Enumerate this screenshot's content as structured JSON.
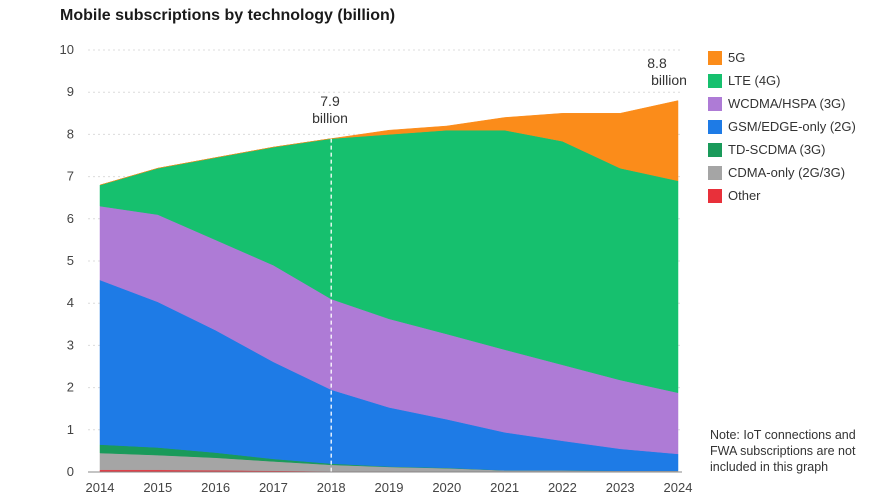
{
  "chart_data": {
    "type": "area",
    "title": "Mobile subscriptions by technology (billion)",
    "xlabel": "",
    "ylabel": "",
    "x": [
      2014,
      2015,
      2016,
      2017,
      2018,
      2019,
      2020,
      2021,
      2022,
      2023,
      2024
    ],
    "x_tick_labels": [
      "2014",
      "2015",
      "2016",
      "2017",
      "2018",
      "2019",
      "2020",
      "2021",
      "2022",
      "2023",
      "2024"
    ],
    "ylim": [
      0,
      10
    ],
    "y_ticks": [
      0,
      1,
      2,
      3,
      4,
      5,
      6,
      7,
      8,
      9,
      10
    ],
    "grid": true,
    "stacked": true,
    "series": [
      {
        "name": "Other",
        "color": "#e8303a",
        "values": [
          0.05,
          0.05,
          0.04,
          0.03,
          0.02,
          0.02,
          0.01,
          0.01,
          0.01,
          0.01,
          0.01
        ]
      },
      {
        "name": "CDMA-only (2G/3G)",
        "color": "#a5a5a5",
        "values": [
          0.4,
          0.35,
          0.3,
          0.22,
          0.15,
          0.1,
          0.08,
          0.03,
          0.03,
          0.02,
          0.02
        ]
      },
      {
        "name": "TD-SCDMA (3G)",
        "color": "#1a9a5a",
        "values": [
          0.2,
          0.18,
          0.12,
          0.06,
          0.03,
          0.01,
          0.01,
          0.0,
          0.0,
          0.0,
          0.0
        ]
      },
      {
        "name": "GSM/EDGE-only (2G)",
        "color": "#1e7be6",
        "values": [
          3.9,
          3.45,
          2.9,
          2.3,
          1.75,
          1.4,
          1.15,
          0.9,
          0.7,
          0.52,
          0.4
        ]
      },
      {
        "name": "WCDMA/HSPA (3G)",
        "color": "#ae7bd6",
        "values": [
          1.75,
          2.07,
          2.14,
          2.29,
          2.15,
          2.1,
          2.02,
          1.96,
          1.8,
          1.63,
          1.45
        ]
      },
      {
        "name": "LTE (4G)",
        "color": "#16c06e",
        "values": [
          0.5,
          1.1,
          1.95,
          2.8,
          3.8,
          4.37,
          4.83,
          5.2,
          5.3,
          5.02,
          5.02
        ]
      },
      {
        "name": "5G",
        "color": "#fb8c1a",
        "values": [
          0.0,
          0.0,
          0.0,
          0.0,
          0.0,
          0.1,
          0.1,
          0.3,
          0.66,
          1.3,
          1.9
        ]
      }
    ],
    "legend_order": [
      "5G",
      "LTE (4G)",
      "WCDMA/HSPA (3G)",
      "GSM/EDGE-only (2G)",
      "TD-SCDMA (3G)",
      "CDMA-only (2G/3G)",
      "Other"
    ],
    "annotations": {
      "year_2018_value": "7.9",
      "year_2018_unit": "billion",
      "year_2024_value": "8.8",
      "year_2024_unit": "billion"
    },
    "note": "Note: IoT connections and FWA subscriptions are not included in this graph"
  }
}
